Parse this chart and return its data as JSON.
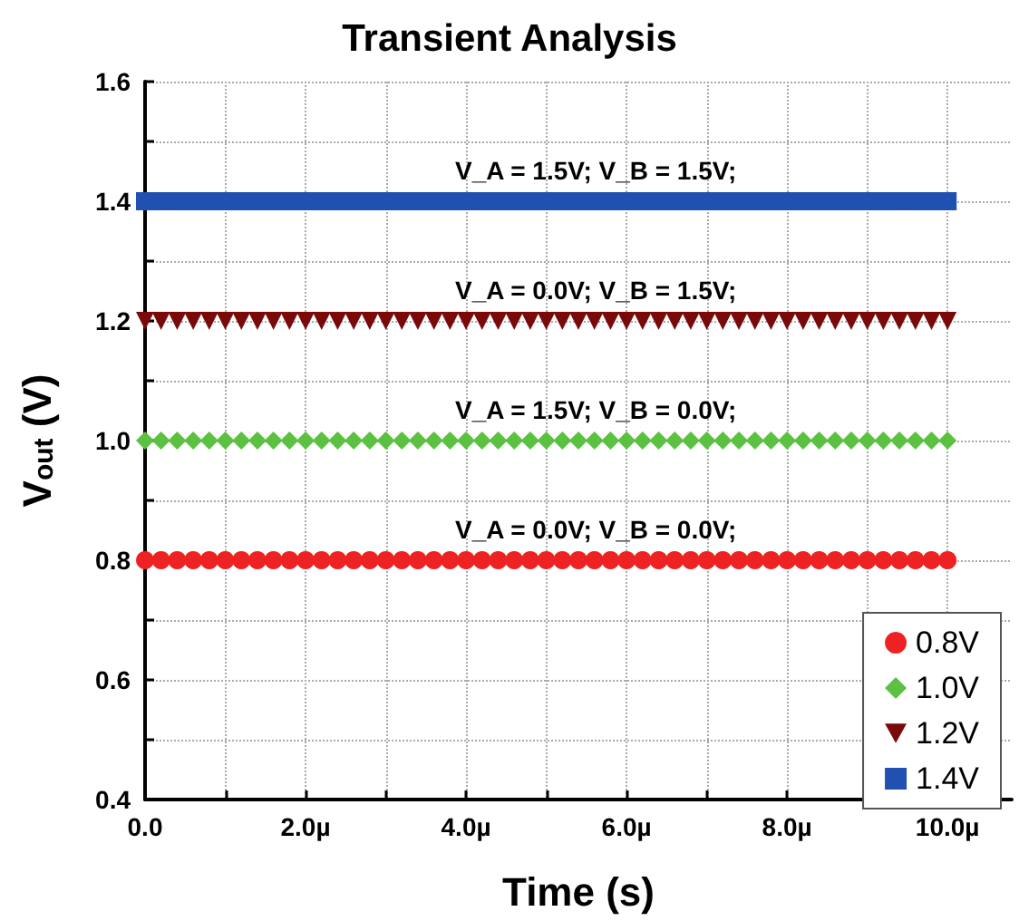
{
  "chart_data": {
    "type": "scatter",
    "title": "Transient Analysis",
    "xlabel": "Time (s)",
    "ylabel": "V$_{out}$ (V)",
    "x": [
      0,
      0.2,
      0.4,
      0.6,
      0.8,
      1,
      1.2,
      1.4,
      1.6,
      1.8,
      2,
      2.2,
      2.4,
      2.6,
      2.8,
      3,
      3.2,
      3.4,
      3.6,
      3.8,
      4,
      4.2,
      4.4,
      4.6,
      4.8,
      5,
      5.2,
      5.4,
      5.6,
      5.8,
      6,
      6.2,
      6.4,
      6.6,
      6.8,
      7,
      7.2,
      7.4,
      7.6,
      7.8,
      8,
      8.2,
      8.4,
      8.6,
      8.8,
      9,
      9.2,
      9.4,
      9.6,
      9.8,
      10
    ],
    "series": [
      {
        "name": "0.8V",
        "color": "#ee2222",
        "marker": "circle",
        "values": [
          0.8,
          0.8,
          0.8,
          0.8,
          0.8,
          0.8,
          0.8,
          0.8,
          0.8,
          0.8,
          0.8,
          0.8,
          0.8,
          0.8,
          0.8,
          0.8,
          0.8,
          0.8,
          0.8,
          0.8,
          0.8,
          0.8,
          0.8,
          0.8,
          0.8,
          0.8,
          0.8,
          0.8,
          0.8,
          0.8,
          0.8,
          0.8,
          0.8,
          0.8,
          0.8,
          0.8,
          0.8,
          0.8,
          0.8,
          0.8,
          0.8,
          0.8,
          0.8,
          0.8,
          0.8,
          0.8,
          0.8,
          0.8,
          0.8,
          0.8,
          0.8
        ]
      },
      {
        "name": "1.0V",
        "color": "#5cc040",
        "marker": "diamond",
        "values": [
          1,
          1,
          1,
          1,
          1,
          1,
          1,
          1,
          1,
          1,
          1,
          1,
          1,
          1,
          1,
          1,
          1,
          1,
          1,
          1,
          1,
          1,
          1,
          1,
          1,
          1,
          1,
          1,
          1,
          1,
          1,
          1,
          1,
          1,
          1,
          1,
          1,
          1,
          1,
          1,
          1,
          1,
          1,
          1,
          1,
          1,
          1,
          1,
          1,
          1,
          1
        ]
      },
      {
        "name": "1.2V",
        "color": "#7a0a0a",
        "marker": "triangle",
        "values": [
          1.2,
          1.2,
          1.2,
          1.2,
          1.2,
          1.2,
          1.2,
          1.2,
          1.2,
          1.2,
          1.2,
          1.2,
          1.2,
          1.2,
          1.2,
          1.2,
          1.2,
          1.2,
          1.2,
          1.2,
          1.2,
          1.2,
          1.2,
          1.2,
          1.2,
          1.2,
          1.2,
          1.2,
          1.2,
          1.2,
          1.2,
          1.2,
          1.2,
          1.2,
          1.2,
          1.2,
          1.2,
          1.2,
          1.2,
          1.2,
          1.2,
          1.2,
          1.2,
          1.2,
          1.2,
          1.2,
          1.2,
          1.2,
          1.2,
          1.2,
          1.2
        ]
      },
      {
        "name": "1.4V",
        "color": "#2050b0",
        "marker": "square",
        "values": [
          1.4,
          1.4,
          1.4,
          1.4,
          1.4,
          1.4,
          1.4,
          1.4,
          1.4,
          1.4,
          1.4,
          1.4,
          1.4,
          1.4,
          1.4,
          1.4,
          1.4,
          1.4,
          1.4,
          1.4,
          1.4,
          1.4,
          1.4,
          1.4,
          1.4,
          1.4,
          1.4,
          1.4,
          1.4,
          1.4,
          1.4,
          1.4,
          1.4,
          1.4,
          1.4,
          1.4,
          1.4,
          1.4,
          1.4,
          1.4,
          1.4,
          1.4,
          1.4,
          1.4,
          1.4,
          1.4,
          1.4,
          1.4,
          1.4,
          1.4,
          1.4
        ]
      }
    ],
    "annotations": [
      {
        "text": "V_A = 0.0V; V_B = 0.0V;",
        "y": 0.8
      },
      {
        "text": "V_A = 1.5V; V_B = 0.0V;",
        "y": 1.0
      },
      {
        "text": "V_A = 0.0V; V_B = 1.5V;",
        "y": 1.2
      },
      {
        "text": "V_A = 1.5V; V_B = 1.5V;",
        "y": 1.4
      }
    ],
    "xlim": [
      0,
      10.8
    ],
    "xticks": [
      {
        "value": 0,
        "label": "0.0"
      },
      {
        "value": 1,
        "label": null
      },
      {
        "value": 2,
        "label": "2.0µ"
      },
      {
        "value": 3,
        "label": null
      },
      {
        "value": 4,
        "label": "4.0µ"
      },
      {
        "value": 5,
        "label": null
      },
      {
        "value": 6,
        "label": "6.0µ"
      },
      {
        "value": 7,
        "label": null
      },
      {
        "value": 8,
        "label": "8.0µ"
      },
      {
        "value": 9,
        "label": null
      },
      {
        "value": 10,
        "label": "10.0µ"
      }
    ],
    "ylim": [
      0.4,
      1.6
    ],
    "yticks": [
      0.4,
      {
        "value": 0.5,
        "label": null
      },
      0.6,
      {
        "value": 0.7,
        "label": null
      },
      0.8,
      {
        "value": 0.9,
        "label": null
      },
      {
        "value": 1,
        "label": "1.0"
      },
      {
        "value": 1.1,
        "label": null
      },
      1.2,
      {
        "value": 1.3,
        "label": null
      },
      1.4,
      {
        "value": 1.5,
        "label": null
      },
      1.6
    ],
    "grid": true,
    "legend": "bottom right"
  }
}
